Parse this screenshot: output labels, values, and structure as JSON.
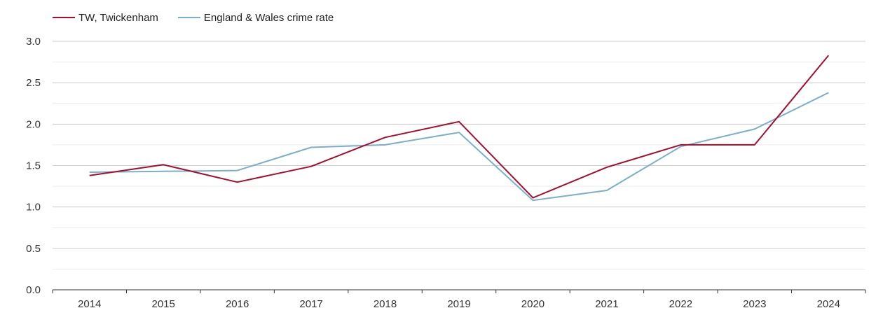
{
  "chart_data": {
    "type": "line",
    "x": [
      "2014",
      "2015",
      "2016",
      "2017",
      "2018",
      "2019",
      "2020",
      "2021",
      "2022",
      "2023",
      "2024"
    ],
    "series": [
      {
        "name": "TW, Twickenham",
        "color": "#a50f2d",
        "values": [
          1.38,
          1.51,
          1.3,
          1.49,
          1.84,
          2.03,
          1.11,
          1.48,
          1.75,
          1.75,
          2.83
        ]
      },
      {
        "name": "England & Wales crime rate",
        "color": "#7aaecd",
        "values": [
          1.42,
          1.43,
          1.44,
          1.72,
          1.75,
          1.9,
          1.08,
          1.2,
          1.73,
          1.94,
          2.38
        ]
      }
    ],
    "yticks": [
      "0.0",
      "0.5",
      "1.0",
      "1.5",
      "2.0",
      "2.5",
      "3.0"
    ],
    "ylim": [
      0,
      3
    ],
    "ytick_step": 0.5,
    "grid": true,
    "legend_position": "top-left"
  }
}
